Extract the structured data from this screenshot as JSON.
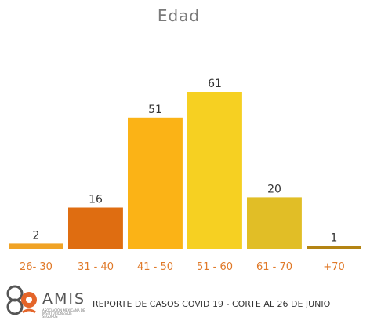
{
  "chart_data": {
    "type": "bar",
    "title": "Edad",
    "xlabel": "",
    "ylabel": "",
    "categories": [
      "26- 30",
      "31 - 40",
      "41 - 50",
      "51 - 60",
      "61 - 70",
      "+70"
    ],
    "values": [
      2,
      16,
      51,
      61,
      20,
      1
    ],
    "value_labels": [
      "2",
      "16",
      "51",
      "61",
      "20",
      "1"
    ],
    "colors": [
      "#f0a326",
      "#df6d11",
      "#fbb316",
      "#f6d022",
      "#e1be26",
      "#b48413"
    ],
    "ylim": [
      0,
      61
    ],
    "grid": false,
    "legend": "none"
  },
  "footer": {
    "logo_word": "AMIS",
    "logo_subtitle": "ASOCIACIÓN MEXICANA DE INSTITUCIONES DE SEGUROS",
    "report_text": "REPORTE DE CASOS COVID 19 - CORTE AL 26 DE JUNIO"
  }
}
